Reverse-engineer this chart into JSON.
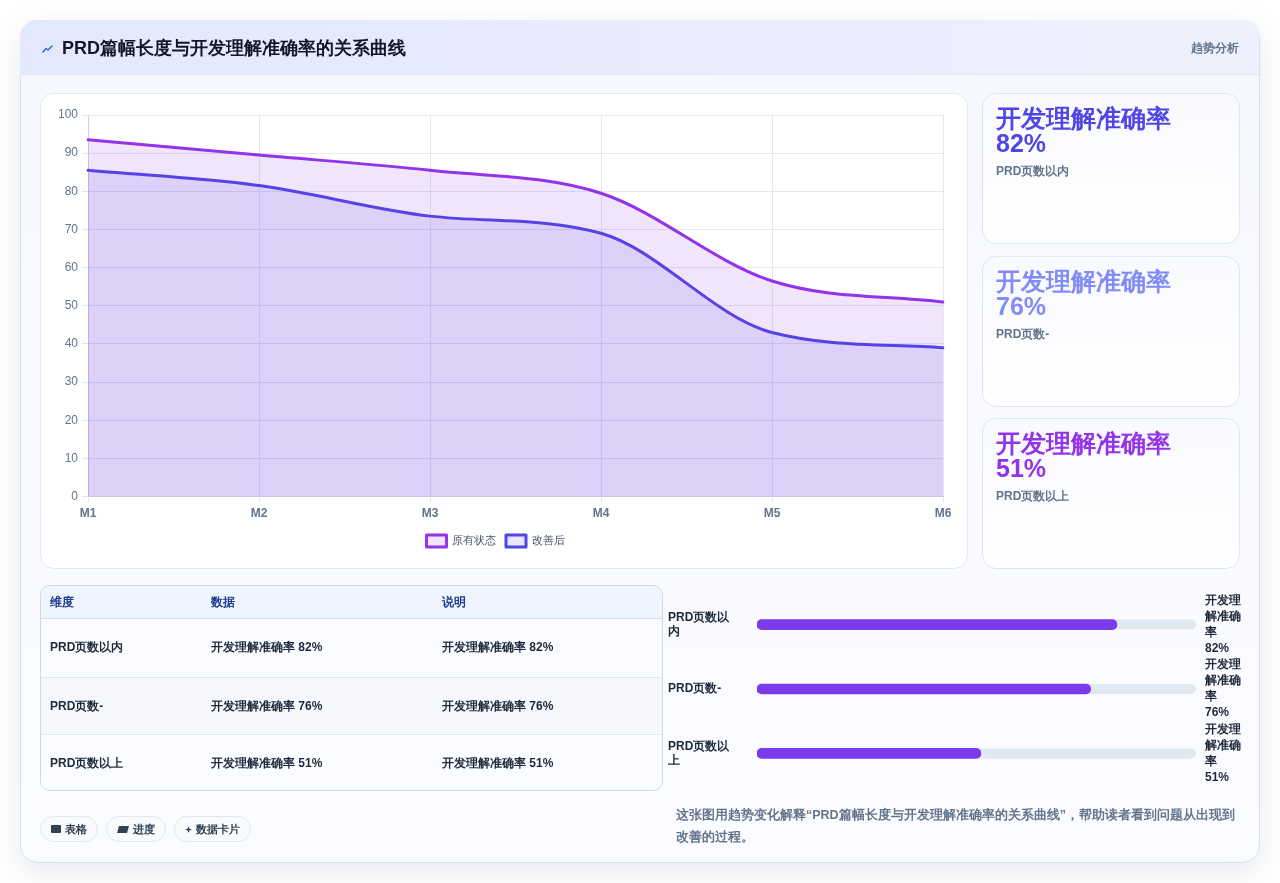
{
  "chart_data": [
    {
      "type": "other",
      "title": "PRD篇幅长度与开发理解准确率的关系曲线",
      "subtitle": "趋势分析"
    },
    {
      "type": "area",
      "categories": [
        "M1",
        "M2",
        "M3",
        "M4",
        "M5",
        "M6"
      ],
      "series": [
        {
          "name": "原有状态",
          "color": "#9333ea",
          "values": [
            93.5,
            89.5,
            85.5,
            79.5,
            56.5,
            51
          ]
        },
        {
          "name": "改善后",
          "color": "#4f46e5",
          "values": [
            85.5,
            81.5,
            73.5,
            69,
            43,
            39
          ]
        }
      ],
      "ylim": [
        0,
        100
      ],
      "yticks": [
        0,
        10,
        20,
        30,
        40,
        50,
        60,
        70,
        80,
        90,
        100
      ],
      "grid": true,
      "legend": "bottom",
      "marker": "none"
    },
    {
      "type": "other",
      "categories": [
        "PRD页数以内",
        "PRD页数-",
        "PRD页数以上"
      ],
      "value_labels": [
        "开发理解准确率 82%",
        "开发理解准确率 76%",
        "开发理解准确率 51%"
      ]
    },
    {
      "type": "other",
      "categories": [
        "维度",
        "数据",
        "说明"
      ],
      "cell_labels": [
        [
          "PRD页数以内",
          "开发理解准确率 82%",
          "开发理解准确率 82%"
        ],
        [
          "PRD页数-",
          "开发理解准确率 76%",
          "开发理解准确率 76%"
        ],
        [
          "PRD页数以上",
          "开发理解准确率 51%",
          "开发理解准确率 51%"
        ]
      ]
    },
    {
      "type": "bar",
      "orientation": "horizontal",
      "categories": [
        "PRD页数以内",
        "PRD页数-",
        "PRD页数以上"
      ],
      "values": [
        82,
        76,
        51
      ],
      "color": "#7c3aed",
      "xlim": [
        0,
        100
      ],
      "tick_labels": "y",
      "value_labels": [
        "开发理解准确率 82%",
        "开发理解准确率 76%",
        "开发理解准确率 51%"
      ],
      "annotations": [
        "这张图用趋势变化解释“PRD篇幅长度与开发理解准确率的关系曲线”，帮助读者看到问题从出现到改善的过程。"
      ]
    },
    {
      "type": "other",
      "annotations": [
        "表格",
        "进度",
        "数据卡片"
      ]
    }
  ]
}
